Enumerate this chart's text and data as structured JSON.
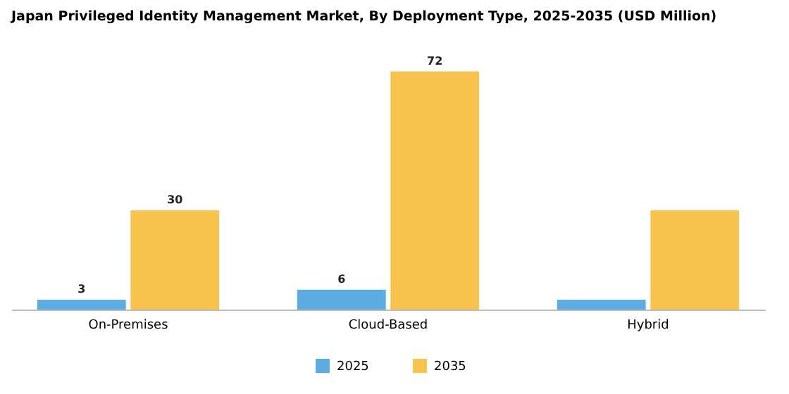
{
  "chart_data": {
    "type": "bar",
    "title": "Japan Privileged Identity Management Market, By Deployment Type, 2025-2035 (USD Million)",
    "categories": [
      "On-Premises",
      "Cloud-Based",
      "Hybrid"
    ],
    "series": [
      {
        "name": "2025",
        "color": "#5dade2",
        "values": [
          3,
          6,
          3
        ],
        "value_labels": [
          "3",
          "6",
          null
        ]
      },
      {
        "name": "2035",
        "color": "#f8c44f",
        "values": [
          30,
          72,
          30
        ],
        "value_labels": [
          "30",
          "72",
          null
        ]
      }
    ],
    "legend": "bottom",
    "grid": false
  }
}
